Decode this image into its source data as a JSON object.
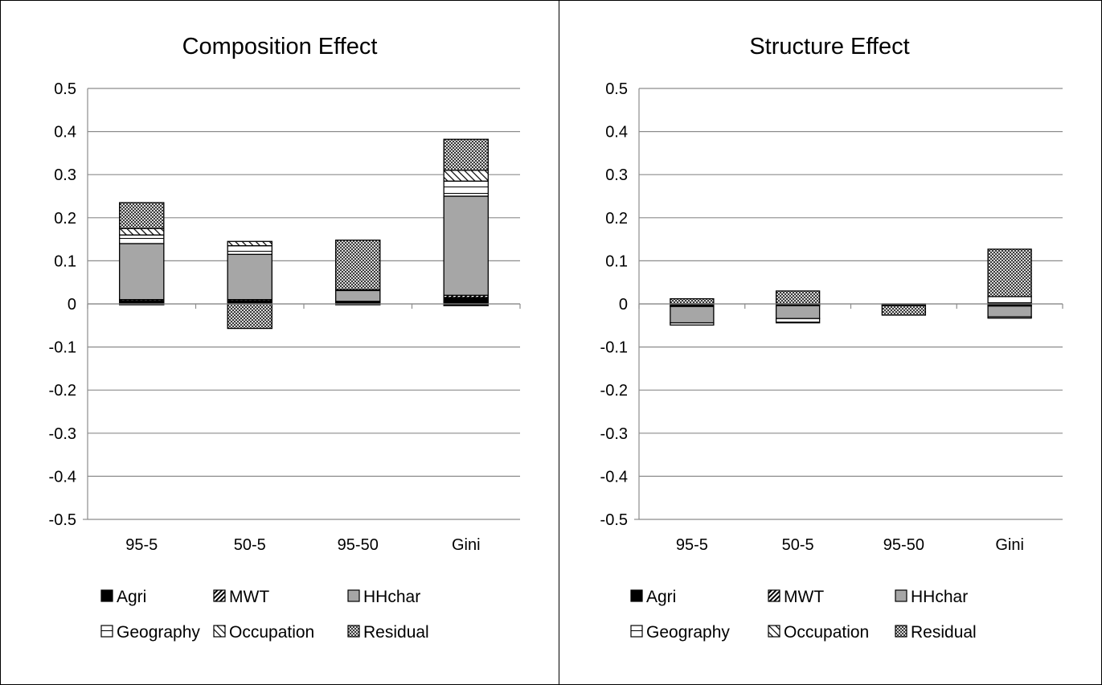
{
  "chart_data": [
    {
      "type": "bar",
      "stacked": true,
      "title": "Composition Effect",
      "xlabel": "",
      "ylabel": "",
      "ylim": [
        -0.5,
        0.5
      ],
      "yticks": [
        "0.5",
        "0.4",
        "0.3",
        "0.2",
        "0.1",
        "0",
        "-0.1",
        "-0.2",
        "-0.3",
        "-0.4",
        "-0.5"
      ],
      "categories": [
        "95-5",
        "50-5",
        "95-50",
        "Gini"
      ],
      "grid": true,
      "legend_position": "bottom",
      "series": [
        {
          "name": "Agri",
          "values": [
            0.007,
            0.007,
            0.004,
            0.015
          ]
        },
        {
          "name": "MWT",
          "values": [
            0.003,
            0.003,
            0.002,
            0.005
          ]
        },
        {
          "name": "HHchar",
          "values": [
            0.13,
            0.105,
            0.025,
            0.23
          ]
        },
        {
          "name": "Geography",
          "values": [
            0.02,
            0.02,
            0.002,
            0.035
          ]
        },
        {
          "name": "Occupation",
          "values": [
            0.015,
            0.01,
            0.0,
            0.025
          ]
        },
        {
          "name": "Residual",
          "values": [
            0.06,
            0.0,
            0.115,
            0.072
          ]
        }
      ],
      "negative_series": [
        {
          "name": "Agri",
          "values": [
            0.0,
            0.0,
            0.0,
            -0.004
          ]
        },
        {
          "name": "Residual",
          "values": [
            -0.002,
            -0.057,
            -0.002,
            0.0
          ]
        }
      ]
    },
    {
      "type": "bar",
      "stacked": true,
      "title": "Structure Effect",
      "xlabel": "",
      "ylabel": "",
      "ylim": [
        -0.5,
        0.5
      ],
      "yticks": [
        "0.5",
        "0.4",
        "0.3",
        "0.2",
        "0.1",
        "0",
        "-0.1",
        "-0.2",
        "-0.3",
        "-0.4",
        "-0.5"
      ],
      "categories": [
        "95-5",
        "50-5",
        "95-50",
        "Gini"
      ],
      "grid": true,
      "legend_position": "bottom",
      "series": [
        {
          "name": "Agri",
          "values": [
            0.0,
            0.0,
            0.0,
            0.0
          ]
        },
        {
          "name": "MWT",
          "values": [
            0.0,
            0.0,
            0.0,
            0.002
          ]
        },
        {
          "name": "HHchar",
          "values": [
            0.0,
            0.0,
            0.0,
            0.0
          ]
        },
        {
          "name": "Geography",
          "values": [
            0.0,
            0.0,
            0.0,
            0.015
          ]
        },
        {
          "name": "Occupation",
          "values": [
            0.0,
            0.0,
            0.0,
            0.0
          ]
        },
        {
          "name": "Residual",
          "values": [
            0.012,
            0.03,
            0.0,
            0.11
          ]
        }
      ],
      "negative_series": [
        {
          "name": "Agri",
          "values": [
            -0.004,
            -0.002,
            0.0,
            -0.003
          ]
        },
        {
          "name": "MWT",
          "values": [
            -0.002,
            -0.002,
            0.0,
            -0.002
          ]
        },
        {
          "name": "HHchar",
          "values": [
            -0.038,
            -0.03,
            -0.002,
            -0.025
          ]
        },
        {
          "name": "Geography",
          "values": [
            -0.005,
            -0.01,
            -0.002,
            -0.003
          ]
        },
        {
          "name": "Residual",
          "values": [
            0.0,
            0.0,
            -0.022,
            0.0
          ]
        }
      ]
    }
  ],
  "style": {
    "grid_color": "#8c8c8c",
    "bar_stroke": "#000000",
    "hhchar_fill": "#a6a6a6",
    "agri_fill": "#000000"
  },
  "legend_icons": [
    "solid-black-square",
    "diagonal-hatch-square",
    "gray-square",
    "horizontal-line-square",
    "light-diagonal-square",
    "crosshatch-square"
  ]
}
